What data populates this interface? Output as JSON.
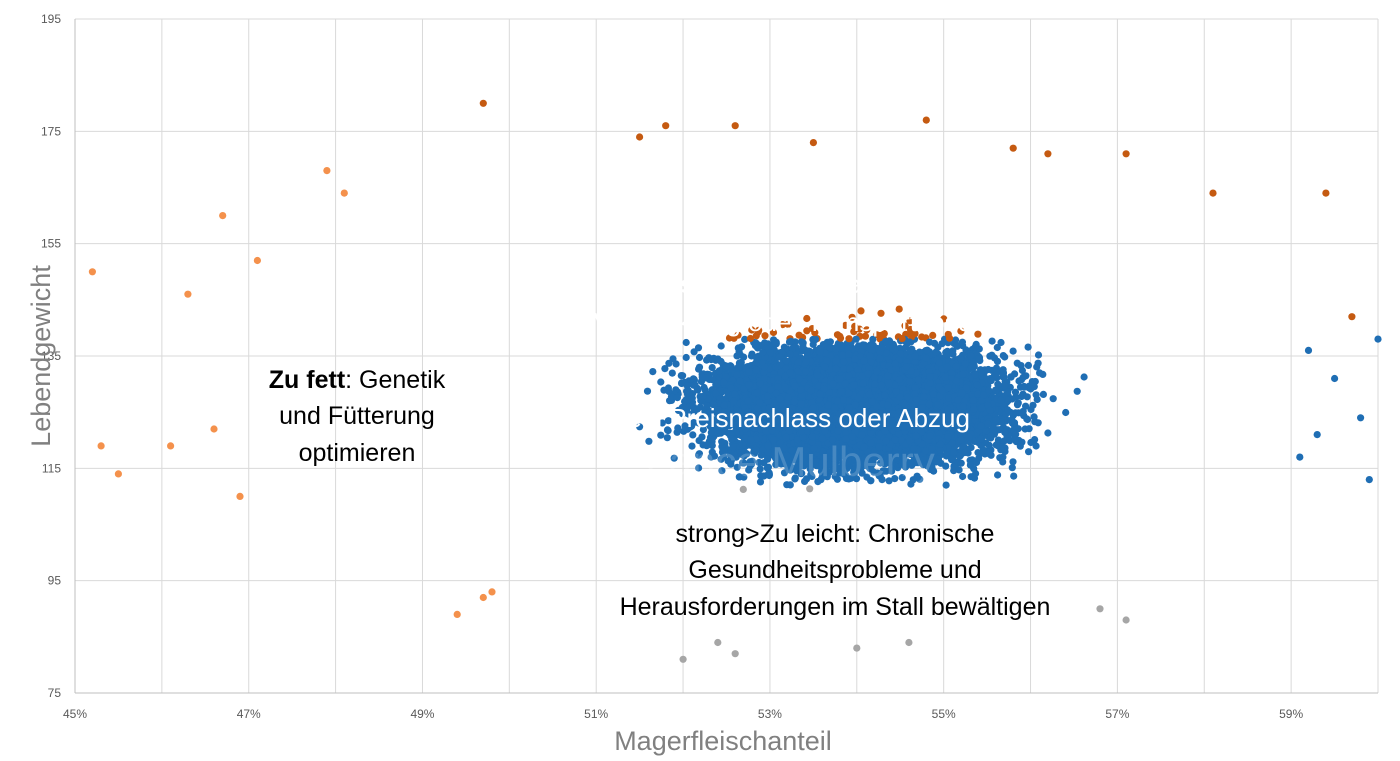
{
  "chart_data": {
    "type": "scatter",
    "title": "",
    "xlabel": "Magerfleischanteil",
    "ylabel": "Lebendgewicht",
    "xlim": [
      45,
      60
    ],
    "ylim": [
      75,
      195
    ],
    "x_ticks": [
      "45%",
      "47%",
      "49%",
      "51%",
      "53%",
      "55%",
      "57%",
      "59%"
    ],
    "x_tick_values": [
      45,
      47,
      49,
      51,
      53,
      55,
      57,
      59
    ],
    "y_ticks": [
      "75",
      "95",
      "115",
      "135",
      "155",
      "175",
      "195"
    ],
    "y_tick_values": [
      75,
      95,
      115,
      135,
      155,
      175,
      195
    ],
    "grid": true,
    "zones": [
      {
        "name": "Zu schwer",
        "color": "#C55A11",
        "x_range": [
          49,
          59.7
        ],
        "y_range": [
          138,
          180
        ]
      },
      {
        "name": "Kein Preisnachlass oder Abzug",
        "color": "#1F6EB4",
        "x_range": [
          50,
          60
        ],
        "y_range": [
          112,
          138
        ]
      },
      {
        "name": "Zu fett",
        "color": "#F4914C",
        "x_range": [
          45,
          50
        ],
        "y_range": [
          88,
          170
        ]
      },
      {
        "name": "Zu leicht",
        "color": "#A6A6A6",
        "x_range": [
          50,
          59
        ],
        "y_range": [
          80,
          112
        ]
      }
    ],
    "outliers": [
      {
        "zone": "Zu fett",
        "points": [
          [
            45.2,
            150
          ],
          [
            45.3,
            119
          ],
          [
            45.5,
            114
          ],
          [
            46.1,
            119
          ],
          [
            46.3,
            146
          ],
          [
            46.6,
            122
          ],
          [
            46.7,
            160
          ],
          [
            46.9,
            110
          ],
          [
            47.1,
            152
          ],
          [
            47.9,
            168
          ],
          [
            48.1,
            164
          ],
          [
            49.4,
            89
          ],
          [
            49.8,
            93
          ],
          [
            49.7,
            92
          ]
        ]
      },
      {
        "zone": "Zu schwer",
        "points": [
          [
            49.7,
            180
          ],
          [
            51.5,
            174
          ],
          [
            51.8,
            176
          ],
          [
            52.6,
            176
          ],
          [
            53.5,
            173
          ],
          [
            54.8,
            177
          ],
          [
            55.8,
            172
          ],
          [
            56.2,
            171
          ],
          [
            57.1,
            171
          ],
          [
            58.1,
            164
          ],
          [
            59.4,
            164
          ],
          [
            59.7,
            142
          ]
        ]
      },
      {
        "zone": "Kein Preisnachlass oder Abzug",
        "points": [
          [
            59.2,
            136
          ],
          [
            59.5,
            131
          ],
          [
            59.8,
            124
          ],
          [
            59.9,
            113
          ],
          [
            60.0,
            138
          ],
          [
            59.1,
            117
          ],
          [
            59.3,
            121
          ]
        ]
      },
      {
        "zone": "Zu leicht",
        "points": [
          [
            52.0,
            81
          ],
          [
            52.4,
            84
          ],
          [
            52.6,
            82
          ],
          [
            54.0,
            83
          ],
          [
            54.6,
            84
          ],
          [
            57.1,
            88
          ],
          [
            56.8,
            90
          ]
        ]
      }
    ]
  },
  "annotations": {
    "heavy": {
      "bold": "Zu schwer:",
      "line1_rest": " Probleme bei",
      "line2": "Vermarktung oder Transport lösen"
    },
    "ok": {
      "text": "Kein Preisnachlass oder Abzug"
    },
    "fat": {
      "bold": "Zu fett",
      "line1_rest": ": Genetik",
      "line2": "und Fütterung",
      "line3": "optimieren"
    },
    "light": {
      "line1": "strong>Zu leicht: Chronische",
      "line2": "Gesundheitsprobleme und",
      "line3": "Herausforderungen im Stall bewältigen"
    }
  },
  "watermark": "Lance Mulberry"
}
